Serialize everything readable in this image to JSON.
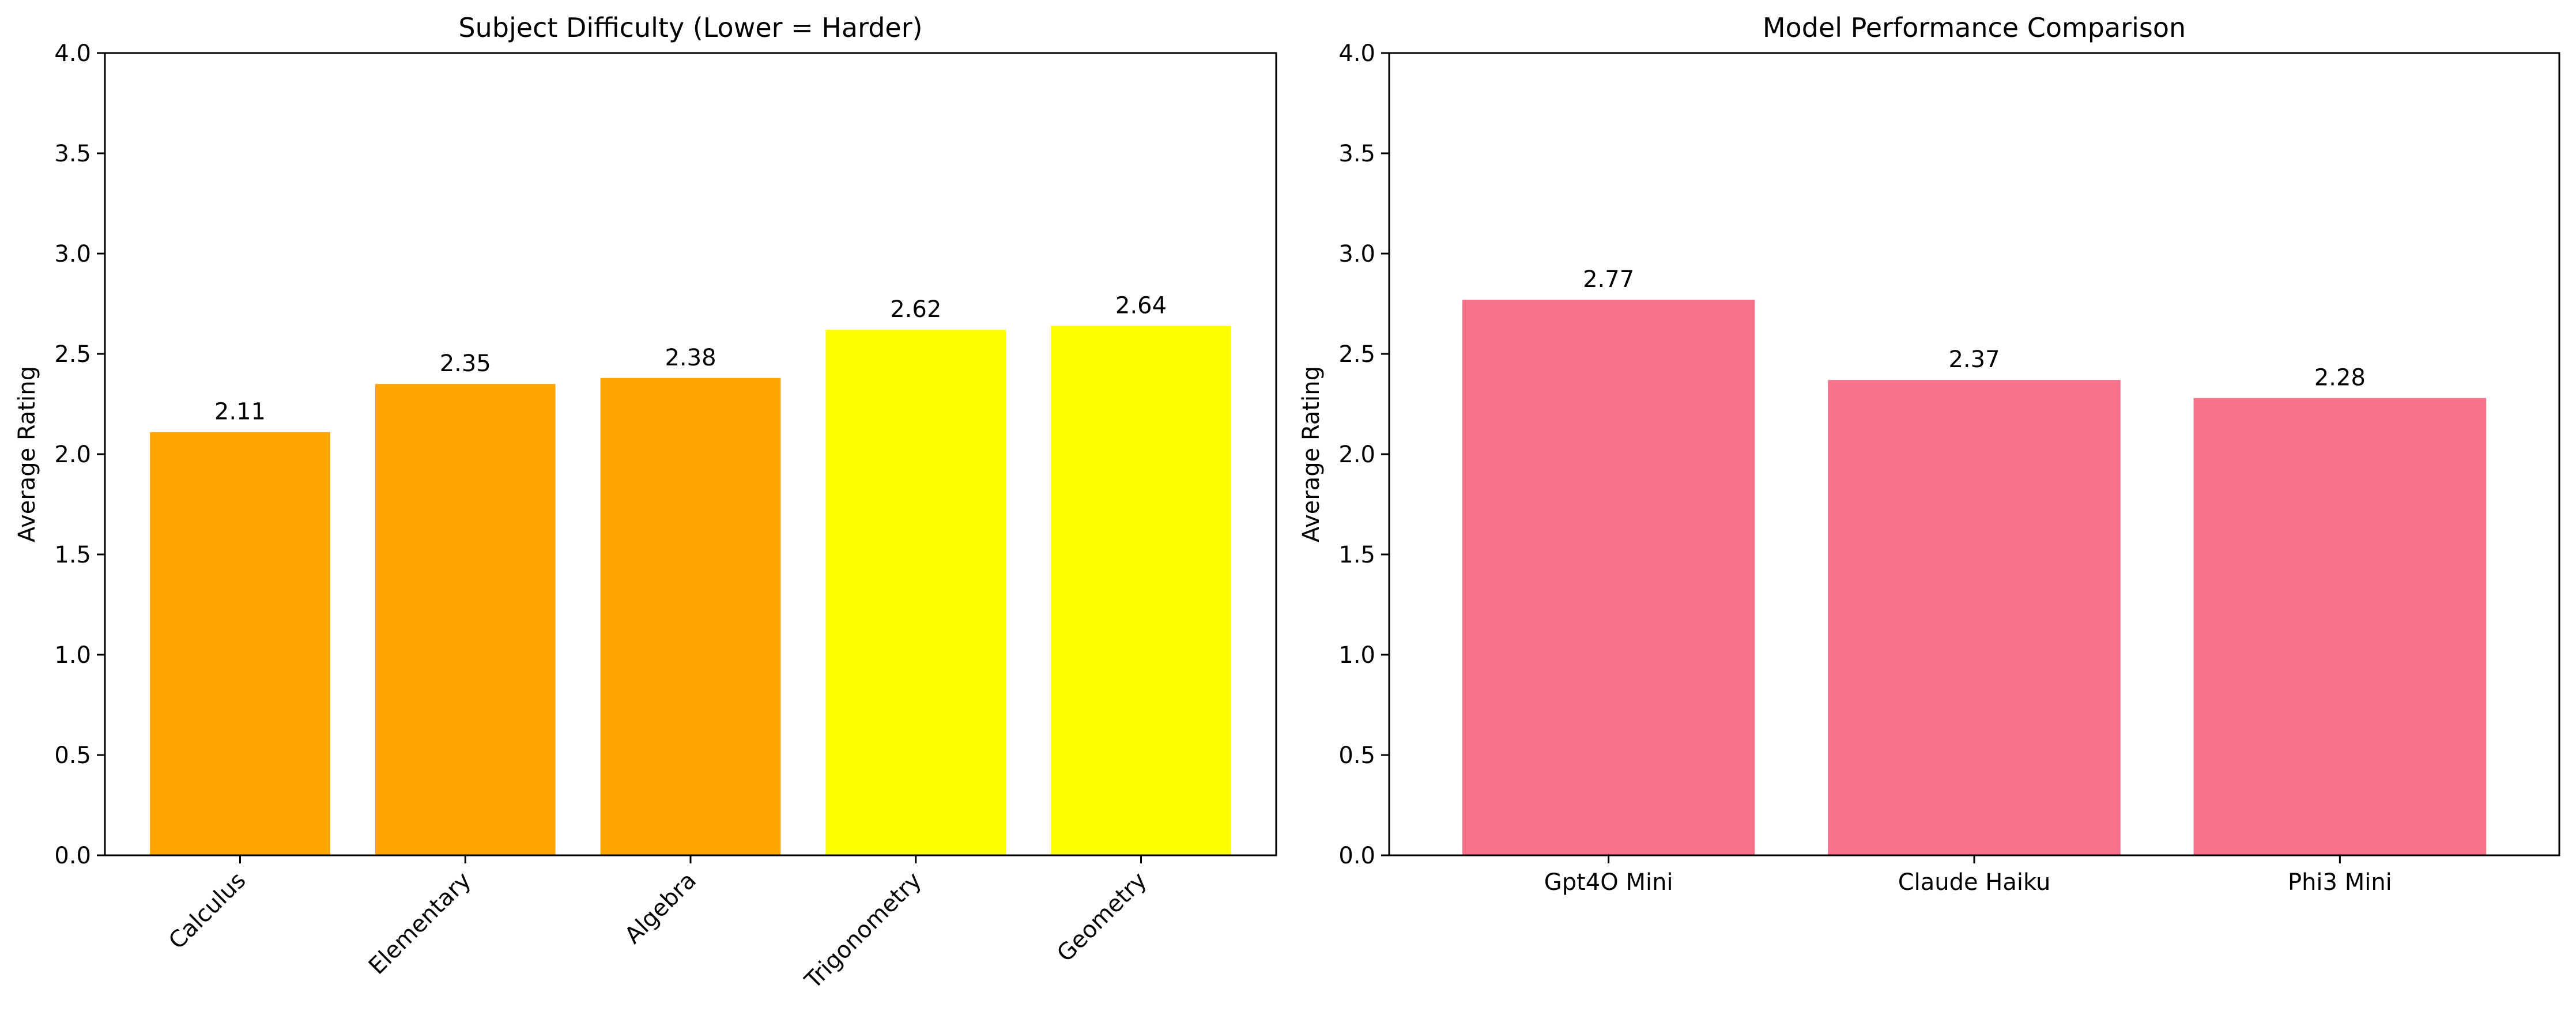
{
  "chart_data": [
    {
      "type": "bar",
      "title": "Subject Difficulty (Lower = Harder)",
      "xlabel": "",
      "ylabel": "Average Rating",
      "ylim": [
        0,
        4.0
      ],
      "yticks": [
        "0.0",
        "0.5",
        "1.0",
        "1.5",
        "2.0",
        "2.5",
        "3.0",
        "3.5",
        "4.0"
      ],
      "categories": [
        "Calculus",
        "Elementary",
        "Algebra",
        "Trigonometry",
        "Geometry"
      ],
      "values": [
        2.11,
        2.35,
        2.38,
        2.62,
        2.64
      ],
      "value_labels": [
        "2.11",
        "2.35",
        "2.38",
        "2.62",
        "2.64"
      ],
      "colors": [
        "#FFA500",
        "#FFA500",
        "#FFA500",
        "#FFFF00",
        "#FFFF00"
      ],
      "xtick_rotation": 45,
      "grid": false
    },
    {
      "type": "bar",
      "title": "Model Performance Comparison",
      "xlabel": "",
      "ylabel": "Average Rating",
      "ylim": [
        0,
        4.0
      ],
      "yticks": [
        "0.0",
        "0.5",
        "1.0",
        "1.5",
        "2.0",
        "2.5",
        "3.0",
        "3.5",
        "4.0"
      ],
      "categories": [
        "Gpt4O Mini",
        "Claude Haiku",
        "Phi3 Mini"
      ],
      "values": [
        2.77,
        2.37,
        2.28
      ],
      "value_labels": [
        "2.77",
        "2.37",
        "2.28"
      ],
      "colors": [
        "#F6728A",
        "#F6728A",
        "#F6728A"
      ],
      "xtick_rotation": 0,
      "grid": false
    }
  ]
}
